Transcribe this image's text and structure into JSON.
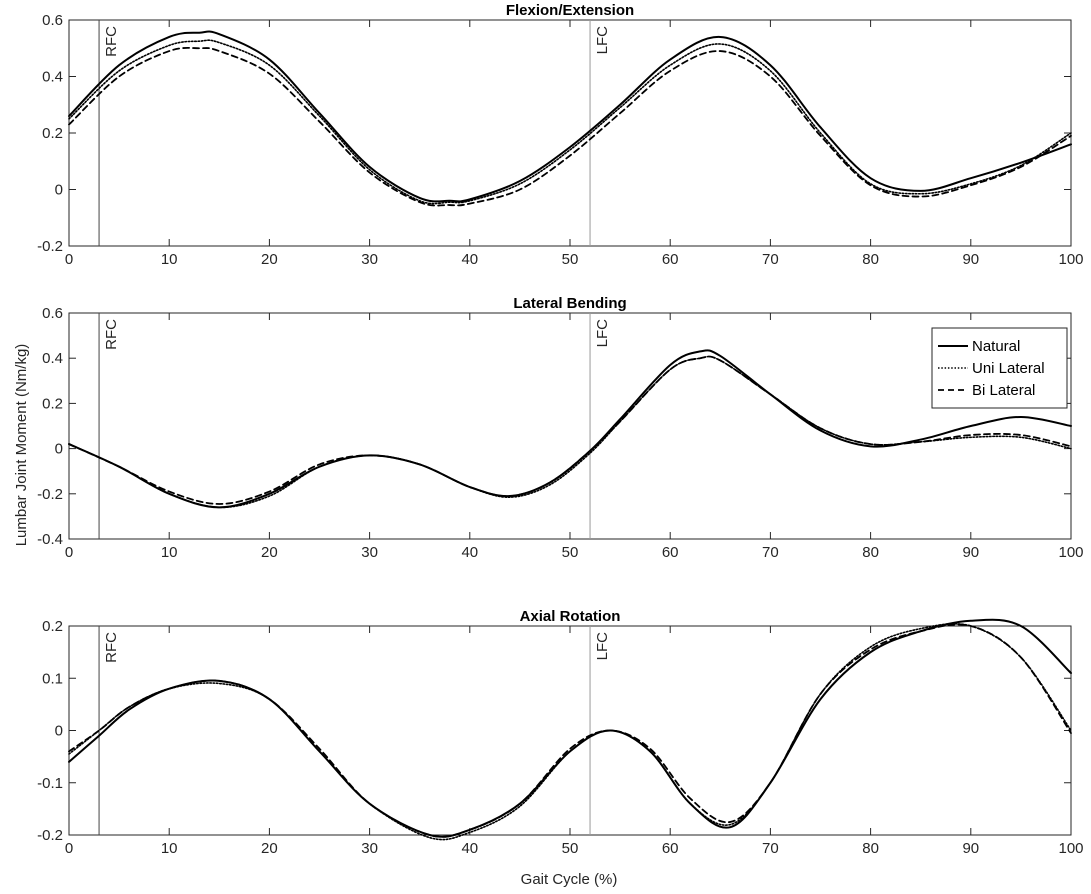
{
  "figure": {
    "ylabel": "Lumbar Joint Moment (Nm/kg)",
    "xlabel": "Gait Cycle (%)"
  },
  "legend": {
    "entries": [
      "Natural",
      "Uni Lateral",
      "Bi Lateral"
    ],
    "placement": "top-right of middle panel"
  },
  "chart_data": [
    {
      "type": "line",
      "title": "Flexion/Extension",
      "xlim": [
        0,
        100
      ],
      "ylim": [
        -0.2,
        0.6
      ],
      "xticks": [
        "0",
        "10",
        "20",
        "30",
        "40",
        "50",
        "60",
        "70",
        "80",
        "90",
        "100"
      ],
      "yticks": [
        "-0.2",
        "0",
        "0.2",
        "0.4",
        "0.6"
      ],
      "events": [
        {
          "label": "RFC",
          "x": 3
        },
        {
          "label": "LFC",
          "x": 52
        }
      ],
      "x": [
        0,
        5,
        10,
        13,
        15,
        20,
        25,
        30,
        35,
        38,
        40,
        45,
        50,
        55,
        60,
        65,
        70,
        75,
        80,
        85,
        90,
        95,
        100
      ],
      "series": [
        {
          "name": "Natural",
          "values": [
            0.26,
            0.44,
            0.54,
            0.555,
            0.55,
            0.46,
            0.27,
            0.08,
            -0.03,
            -0.04,
            -0.035,
            0.03,
            0.15,
            0.3,
            0.46,
            0.54,
            0.44,
            0.22,
            0.04,
            -0.005,
            0.04,
            0.095,
            0.16
          ]
        },
        {
          "name": "Uni Lateral",
          "values": [
            0.25,
            0.42,
            0.51,
            0.525,
            0.52,
            0.44,
            0.26,
            0.07,
            -0.04,
            -0.045,
            -0.04,
            0.02,
            0.14,
            0.29,
            0.44,
            0.515,
            0.42,
            0.2,
            0.02,
            -0.015,
            0.02,
            0.085,
            0.2
          ]
        },
        {
          "name": "Bi Lateral",
          "values": [
            0.23,
            0.4,
            0.49,
            0.5,
            0.49,
            0.41,
            0.24,
            0.06,
            -0.045,
            -0.055,
            -0.05,
            0.0,
            0.12,
            0.27,
            0.42,
            0.49,
            0.4,
            0.19,
            0.015,
            -0.025,
            0.015,
            0.08,
            0.19
          ]
        }
      ]
    },
    {
      "type": "line",
      "title": "Lateral Bending",
      "xlim": [
        0,
        100
      ],
      "ylim": [
        -0.4,
        0.6
      ],
      "xticks": [
        "0",
        "10",
        "20",
        "30",
        "40",
        "50",
        "60",
        "70",
        "80",
        "90",
        "100"
      ],
      "yticks": [
        "-0.4",
        "-0.2",
        "0",
        "0.2",
        "0.4",
        "0.6"
      ],
      "events": [
        {
          "label": "RFC",
          "x": 3
        },
        {
          "label": "LFC",
          "x": 52
        }
      ],
      "x": [
        0,
        5,
        10,
        15,
        20,
        25,
        30,
        35,
        40,
        44,
        48,
        52,
        55,
        60,
        63,
        65,
        70,
        75,
        80,
        85,
        90,
        95,
        100
      ],
      "series": [
        {
          "name": "Natural",
          "values": [
            0.02,
            -0.08,
            -0.2,
            -0.26,
            -0.2,
            -0.08,
            -0.03,
            -0.07,
            -0.17,
            -0.21,
            -0.15,
            -0.01,
            0.13,
            0.37,
            0.43,
            0.41,
            0.24,
            0.08,
            0.01,
            0.04,
            0.1,
            0.14,
            0.1
          ]
        },
        {
          "name": "Uni Lateral",
          "values": [
            0.02,
            -0.08,
            -0.2,
            -0.26,
            -0.21,
            -0.08,
            -0.03,
            -0.07,
            -0.17,
            -0.215,
            -0.16,
            -0.02,
            0.12,
            0.35,
            0.4,
            0.39,
            0.24,
            0.09,
            0.02,
            0.03,
            0.05,
            0.05,
            0.0
          ]
        },
        {
          "name": "Bi Lateral",
          "values": [
            0.02,
            -0.08,
            -0.19,
            -0.245,
            -0.19,
            -0.07,
            -0.03,
            -0.07,
            -0.17,
            -0.21,
            -0.15,
            -0.01,
            0.12,
            0.35,
            0.4,
            0.39,
            0.24,
            0.09,
            0.02,
            0.03,
            0.06,
            0.06,
            0.01
          ]
        }
      ]
    },
    {
      "type": "line",
      "title": "Axial Rotation",
      "xlim": [
        0,
        100
      ],
      "ylim": [
        -0.2,
        0.2
      ],
      "xticks": [
        "0",
        "10",
        "20",
        "30",
        "40",
        "50",
        "60",
        "70",
        "80",
        "90",
        "100"
      ],
      "yticks": [
        "-0.2",
        "-0.1",
        "0",
        "0.1",
        "0.2"
      ],
      "events": [
        {
          "label": "RFC",
          "x": 3
        },
        {
          "label": "LFC",
          "x": 52
        }
      ],
      "x": [
        0,
        3,
        6,
        10,
        15,
        20,
        25,
        30,
        36,
        40,
        45,
        50,
        54,
        58,
        62,
        66,
        70,
        75,
        80,
        85,
        90,
        95,
        100
      ],
      "series": [
        {
          "name": "Natural",
          "values": [
            -0.06,
            -0.01,
            0.04,
            0.08,
            0.095,
            0.06,
            -0.04,
            -0.14,
            -0.2,
            -0.19,
            -0.14,
            -0.04,
            0.0,
            -0.04,
            -0.14,
            -0.185,
            -0.1,
            0.06,
            0.15,
            0.19,
            0.21,
            0.2,
            0.11
          ]
        },
        {
          "name": "Uni Lateral",
          "values": [
            -0.045,
            0.0,
            0.045,
            0.08,
            0.09,
            0.06,
            -0.04,
            -0.14,
            -0.205,
            -0.195,
            -0.145,
            -0.04,
            0.0,
            -0.04,
            -0.14,
            -0.18,
            -0.1,
            0.07,
            0.16,
            0.195,
            0.2,
            0.14,
            0.0
          ]
        },
        {
          "name": "Bi Lateral",
          "values": [
            -0.04,
            0.0,
            0.045,
            0.08,
            0.095,
            0.06,
            -0.035,
            -0.14,
            -0.2,
            -0.19,
            -0.14,
            -0.035,
            0.0,
            -0.035,
            -0.13,
            -0.175,
            -0.1,
            0.07,
            0.155,
            0.19,
            0.2,
            0.14,
            -0.005
          ]
        }
      ]
    }
  ]
}
